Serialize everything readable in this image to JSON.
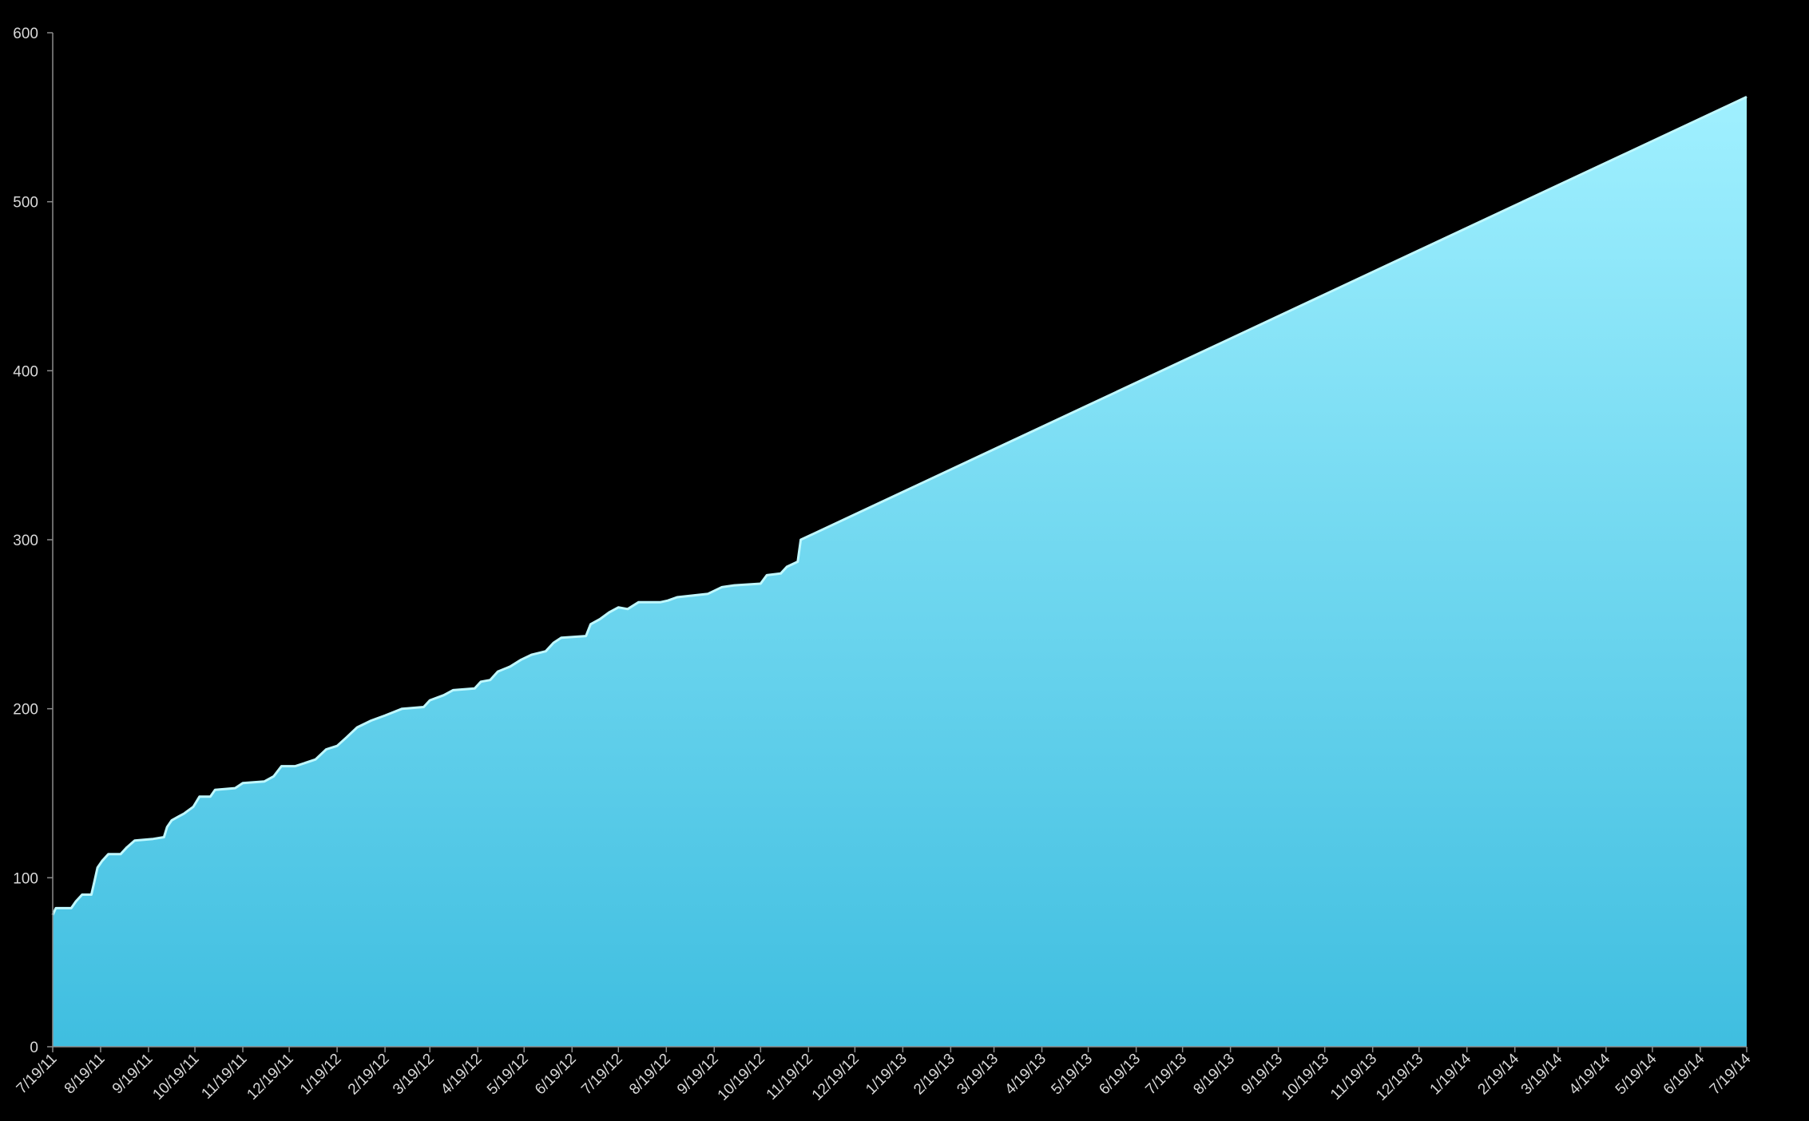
{
  "chart_data": {
    "type": "area",
    "title": "",
    "xlabel": "",
    "ylabel": "",
    "ylim": [
      0,
      600
    ],
    "xlim": [
      "2011-07-19",
      "2014-07-19"
    ],
    "grid": false,
    "legend": "none",
    "fill_top_color": "#a0f0ff",
    "fill_bottom_color": "#3fbee0",
    "edge_color": "#bff8ff",
    "background_color": "#000000",
    "axis_color": "#8c8c8c",
    "text_color": "#d9d9d9",
    "y_ticks": [
      {
        "value": 0,
        "label": "0"
      },
      {
        "value": 100,
        "label": "100"
      },
      {
        "value": 200,
        "label": "200"
      },
      {
        "value": 300,
        "label": "300"
      },
      {
        "value": 400,
        "label": "400"
      },
      {
        "value": 500,
        "label": "500"
      },
      {
        "value": 600,
        "label": "600"
      }
    ],
    "x_ticks": [
      {
        "date": "2011-07-19",
        "label": "7/19/11"
      },
      {
        "date": "2011-08-19",
        "label": "8/19/11"
      },
      {
        "date": "2011-09-19",
        "label": "9/19/11"
      },
      {
        "date": "2011-10-19",
        "label": "10/19/11"
      },
      {
        "date": "2011-11-19",
        "label": "11/19/11"
      },
      {
        "date": "2011-12-19",
        "label": "12/19/11"
      },
      {
        "date": "2012-01-19",
        "label": "1/19/12"
      },
      {
        "date": "2012-02-19",
        "label": "2/19/12"
      },
      {
        "date": "2012-03-19",
        "label": "3/19/12"
      },
      {
        "date": "2012-04-19",
        "label": "4/19/12"
      },
      {
        "date": "2012-05-19",
        "label": "5/19/12"
      },
      {
        "date": "2012-06-19",
        "label": "6/19/12"
      },
      {
        "date": "2012-07-19",
        "label": "7/19/12"
      },
      {
        "date": "2012-08-19",
        "label": "8/19/12"
      },
      {
        "date": "2012-09-19",
        "label": "9/19/12"
      },
      {
        "date": "2012-10-19",
        "label": "10/19/12"
      },
      {
        "date": "2012-11-19",
        "label": "11/19/12"
      },
      {
        "date": "2012-12-19",
        "label": "12/19/12"
      },
      {
        "date": "2013-01-19",
        "label": "1/19/13"
      },
      {
        "date": "2013-02-19",
        "label": "2/19/13"
      },
      {
        "date": "2013-03-19",
        "label": "3/19/13"
      },
      {
        "date": "2013-04-19",
        "label": "4/19/13"
      },
      {
        "date": "2013-05-19",
        "label": "5/19/13"
      },
      {
        "date": "2013-06-19",
        "label": "6/19/13"
      },
      {
        "date": "2013-07-19",
        "label": "7/19/13"
      },
      {
        "date": "2013-08-19",
        "label": "8/19/13"
      },
      {
        "date": "2013-09-19",
        "label": "9/19/13"
      },
      {
        "date": "2013-10-19",
        "label": "10/19/13"
      },
      {
        "date": "2013-11-19",
        "label": "11/19/13"
      },
      {
        "date": "2013-12-19",
        "label": "12/19/13"
      },
      {
        "date": "2014-01-19",
        "label": "1/19/14"
      },
      {
        "date": "2014-02-19",
        "label": "2/19/14"
      },
      {
        "date": "2014-03-19",
        "label": "3/19/14"
      },
      {
        "date": "2014-04-19",
        "label": "4/19/14"
      },
      {
        "date": "2014-05-19",
        "label": "5/19/14"
      },
      {
        "date": "2014-06-19",
        "label": "6/19/14"
      },
      {
        "date": "2014-07-19",
        "label": "7/19/14"
      }
    ],
    "series": [
      {
        "points": [
          [
            "2011-07-19",
            78
          ],
          [
            "2011-07-21",
            82
          ],
          [
            "2011-07-31",
            82
          ],
          [
            "2011-08-03",
            86
          ],
          [
            "2011-08-07",
            90
          ],
          [
            "2011-08-13",
            90
          ],
          [
            "2011-08-15",
            98
          ],
          [
            "2011-08-17",
            106
          ],
          [
            "2011-08-20",
            110
          ],
          [
            "2011-08-24",
            114
          ],
          [
            "2011-09-01",
            114
          ],
          [
            "2011-09-05",
            118
          ],
          [
            "2011-09-10",
            122
          ],
          [
            "2011-09-22",
            123
          ],
          [
            "2011-09-29",
            124
          ],
          [
            "2011-10-01",
            130
          ],
          [
            "2011-10-04",
            134
          ],
          [
            "2011-10-08",
            136
          ],
          [
            "2011-10-12",
            138
          ],
          [
            "2011-10-18",
            142
          ],
          [
            "2011-10-22",
            148
          ],
          [
            "2011-10-29",
            148
          ],
          [
            "2011-11-01",
            152
          ],
          [
            "2011-11-14",
            153
          ],
          [
            "2011-11-19",
            156
          ],
          [
            "2011-12-03",
            157
          ],
          [
            "2011-12-09",
            160
          ],
          [
            "2011-12-14",
            166
          ],
          [
            "2011-12-23",
            166
          ],
          [
            "2012-01-05",
            170
          ],
          [
            "2012-01-12",
            176
          ],
          [
            "2012-01-19",
            178
          ],
          [
            "2012-01-25",
            183
          ],
          [
            "2012-02-01",
            189
          ],
          [
            "2012-02-10",
            193
          ],
          [
            "2012-02-19",
            196
          ],
          [
            "2012-03-01",
            200
          ],
          [
            "2012-03-15",
            201
          ],
          [
            "2012-03-19",
            205
          ],
          [
            "2012-03-28",
            208
          ],
          [
            "2012-04-03",
            211
          ],
          [
            "2012-04-17",
            212
          ],
          [
            "2012-04-21",
            216
          ],
          [
            "2012-04-27",
            217
          ],
          [
            "2012-05-02",
            222
          ],
          [
            "2012-05-10",
            225
          ],
          [
            "2012-05-17",
            229
          ],
          [
            "2012-05-24",
            232
          ],
          [
            "2012-06-02",
            234
          ],
          [
            "2012-06-07",
            239
          ],
          [
            "2012-06-12",
            242
          ],
          [
            "2012-06-28",
            243
          ],
          [
            "2012-07-01",
            250
          ],
          [
            "2012-07-07",
            253
          ],
          [
            "2012-07-13",
            257
          ],
          [
            "2012-07-19",
            260
          ],
          [
            "2012-07-25",
            259
          ],
          [
            "2012-08-01",
            263
          ],
          [
            "2012-08-15",
            263
          ],
          [
            "2012-08-20",
            264
          ],
          [
            "2012-08-26",
            266
          ],
          [
            "2012-09-05",
            267
          ],
          [
            "2012-09-15",
            268
          ],
          [
            "2012-09-24",
            272
          ],
          [
            "2012-10-02",
            273
          ],
          [
            "2012-10-19",
            274
          ],
          [
            "2012-10-23",
            279
          ],
          [
            "2012-11-01",
            280
          ],
          [
            "2012-11-05",
            284
          ],
          [
            "2012-11-12",
            287
          ],
          [
            "2012-11-14",
            300
          ],
          [
            "2014-07-19",
            562
          ]
        ]
      }
    ]
  }
}
